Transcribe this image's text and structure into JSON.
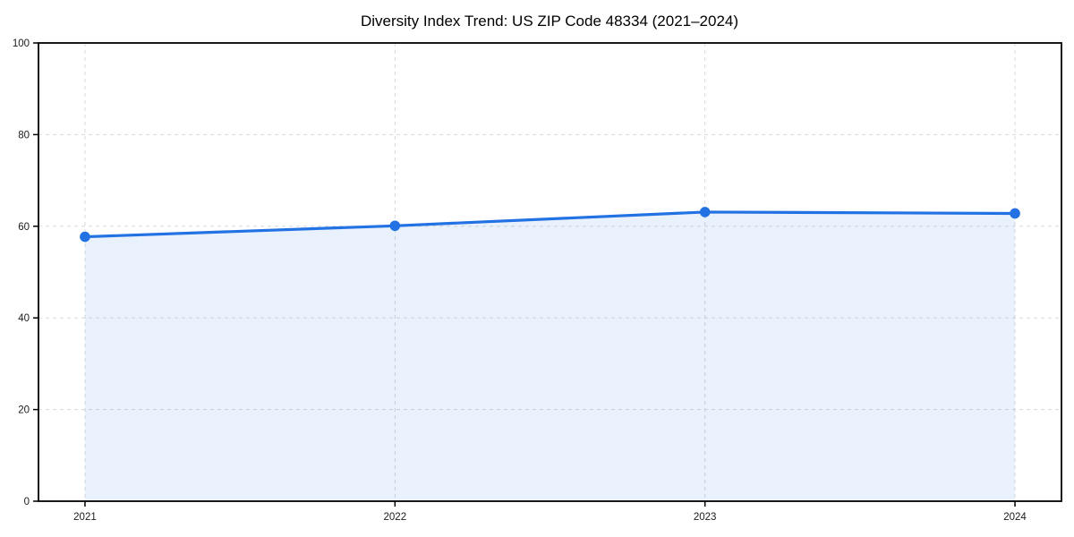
{
  "page": {
    "background_color": "#ffffff"
  },
  "chart_data": {
    "type": "area",
    "title": "Diversity Index Trend: US ZIP Code 48334 (2021–2024)",
    "x": [
      2021,
      2022,
      2023,
      2024
    ],
    "x_labels": [
      "2021",
      "2022",
      "2023",
      "2024"
    ],
    "series": [
      {
        "name": "Diversity Index",
        "values": [
          57.7,
          60.1,
          63.1,
          62.8
        ]
      }
    ],
    "xlabel": "",
    "ylabel": "",
    "xlim": [
      2020.85,
      2024.15
    ],
    "ylim": [
      0,
      100
    ],
    "yticks": [
      0,
      20,
      40,
      60,
      80,
      100
    ],
    "ytick_labels": [
      "0",
      "20",
      "40",
      "60",
      "80",
      "100"
    ],
    "grid": true,
    "grid_style": "dashed",
    "legend_position": "none",
    "colors": {
      "line": "#2272e3",
      "marker": "#2272e3",
      "fill": "#2272e3",
      "fill_opacity": 0.1,
      "grid": "#d9d9d9",
      "spine": "#000000",
      "tick_label": "#1a1a1a",
      "title": "#000000"
    }
  }
}
